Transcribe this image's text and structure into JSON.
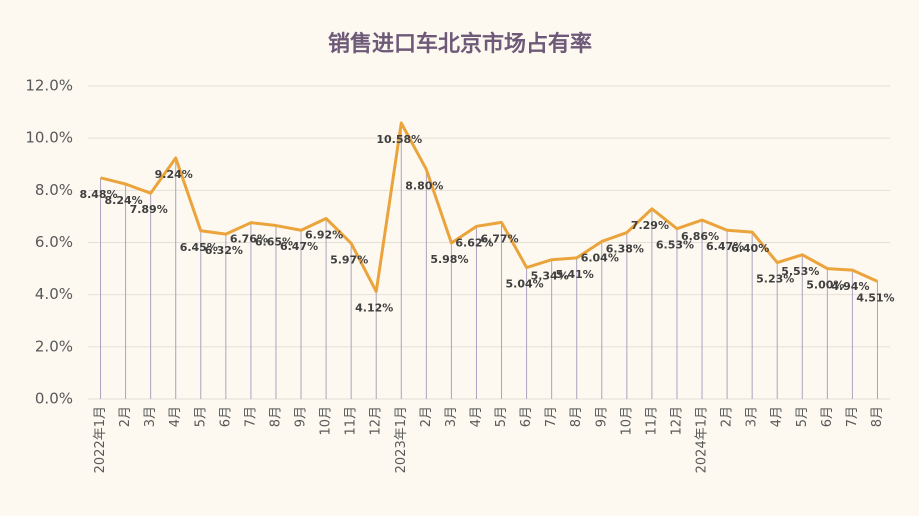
{
  "chart_data": {
    "type": "line",
    "title": "销售进口车北京市场占有率",
    "categories": [
      "2022年1月",
      "2月",
      "3月",
      "4月",
      "5月",
      "6月",
      "7月",
      "8月",
      "9月",
      "10月",
      "11月",
      "12月",
      "2023年1月",
      "2月",
      "3月",
      "4月",
      "5月",
      "6月",
      "7月",
      "8月",
      "9月",
      "10月",
      "11月",
      "12月",
      "2024年1月",
      "2月",
      "3月",
      "4月",
      "5月",
      "6月",
      "7月",
      "8月"
    ],
    "values": [
      8.48,
      8.24,
      7.89,
      9.24,
      6.45,
      6.32,
      6.76,
      6.65,
      6.47,
      6.92,
      5.97,
      4.12,
      10.58,
      8.8,
      5.98,
      6.62,
      6.77,
      5.04,
      5.34,
      5.41,
      6.04,
      6.38,
      7.29,
      6.53,
      6.86,
      6.47,
      6.4,
      5.23,
      5.53,
      5.0,
      4.94,
      4.51
    ],
    "value_labels": [
      "8.48%",
      "8.24%",
      "7.89%",
      "9.24%",
      "6.45%",
      "6.32%",
      "6.76%",
      "6.65%",
      "6.47%",
      "6.92%",
      "5.97%",
      "4.12%",
      "10.58%",
      "8.80%",
      "5.98%",
      "6.62%",
      "6.77%",
      "5.04%",
      "5.34%",
      "5.41%",
      "6.04%",
      "6.38%",
      "7.29%",
      "6.53%",
      "6.86%",
      "6.47%",
      "6.40%",
      "5.23%",
      "5.53%",
      "5.00%",
      "4.94%",
      "4.51%"
    ],
    "color": "#eba43c",
    "ylim": [
      0,
      12
    ],
    "yticks": [
      {
        "value": 0,
        "label": "0.0%"
      },
      {
        "value": 2,
        "label": "2.0%"
      },
      {
        "value": 4,
        "label": "4.0%"
      },
      {
        "value": 6,
        "label": "6.0%"
      },
      {
        "value": 8,
        "label": "8.0%"
      },
      {
        "value": 10,
        "label": "10.0%"
      },
      {
        "value": 12,
        "label": "12.0%"
      }
    ],
    "grid": true,
    "drop_lines": true
  }
}
